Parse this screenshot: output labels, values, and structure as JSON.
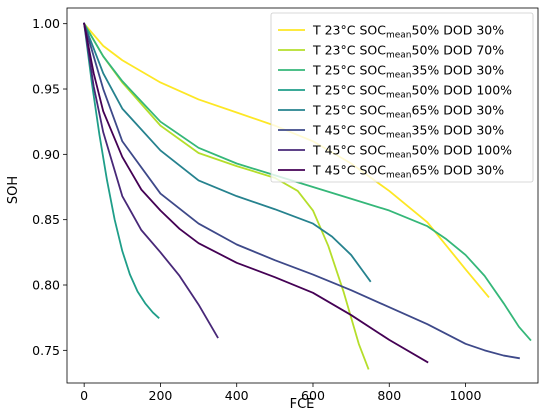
{
  "chart_data": {
    "type": "line",
    "xlabel": "FCE",
    "ylabel": "SOH",
    "xlim": [
      -45,
      1190
    ],
    "ylim": [
      0.725,
      1.012
    ],
    "x_ticks": [
      0,
      200,
      400,
      600,
      800,
      1000
    ],
    "y_ticks": [
      0.75,
      0.8,
      0.85,
      0.9,
      0.95,
      1.0
    ],
    "y_tick_labels": [
      "0.75",
      "0.80",
      "0.85",
      "0.90",
      "0.95",
      "1.00"
    ],
    "grid": false,
    "legend_position": "top-right",
    "series": [
      {
        "name_parts": [
          "T 23°C SOC",
          "mean",
          "50% DOD 30%"
        ],
        "color": "#fde725",
        "x": [
          0,
          50,
          100,
          200,
          300,
          400,
          500,
          600,
          700,
          800,
          900,
          1000,
          1060
        ],
        "y": [
          1.0,
          0.983,
          0.972,
          0.955,
          0.942,
          0.932,
          0.922,
          0.91,
          0.893,
          0.872,
          0.848,
          0.812,
          0.791
        ]
      },
      {
        "name_parts": [
          "T 23°C SOC",
          "mean",
          "50% DOD 70%"
        ],
        "color": "#b5de2b",
        "x": [
          0,
          50,
          100,
          200,
          300,
          400,
          500,
          560,
          600,
          640,
          680,
          720,
          745
        ],
        "y": [
          1.0,
          0.975,
          0.955,
          0.922,
          0.901,
          0.891,
          0.882,
          0.872,
          0.857,
          0.83,
          0.795,
          0.755,
          0.736
        ]
      },
      {
        "name_parts": [
          "T 25°C SOC",
          "mean",
          "35% DOD 30%"
        ],
        "color": "#35b779",
        "x": [
          0,
          50,
          100,
          200,
          300,
          400,
          500,
          600,
          700,
          800,
          900,
          950,
          1000,
          1050,
          1100,
          1140,
          1170
        ],
        "y": [
          1.0,
          0.975,
          0.956,
          0.925,
          0.905,
          0.893,
          0.884,
          0.875,
          0.866,
          0.857,
          0.845,
          0.835,
          0.823,
          0.807,
          0.786,
          0.768,
          0.758
        ]
      },
      {
        "name_parts": [
          "T 25°C SOC",
          "mean",
          "50% DOD 100%"
        ],
        "color": "#1f9e89",
        "x": [
          0,
          20,
          40,
          60,
          80,
          100,
          120,
          140,
          160,
          180,
          195
        ],
        "y": [
          1.0,
          0.955,
          0.915,
          0.88,
          0.85,
          0.826,
          0.808,
          0.795,
          0.786,
          0.779,
          0.775
        ]
      },
      {
        "name_parts": [
          "T 25°C SOC",
          "mean",
          "65% DOD 30%"
        ],
        "color": "#26828e",
        "x": [
          0,
          50,
          100,
          200,
          300,
          400,
          500,
          600,
          650,
          700,
          730,
          750
        ],
        "y": [
          1.0,
          0.962,
          0.935,
          0.903,
          0.88,
          0.868,
          0.858,
          0.847,
          0.837,
          0.823,
          0.811,
          0.803
        ]
      },
      {
        "name_parts": [
          "T 45°C SOC",
          "mean",
          "35% DOD 30%"
        ],
        "color": "#3e4989",
        "x": [
          0,
          50,
          100,
          200,
          300,
          400,
          500,
          600,
          700,
          800,
          900,
          1000,
          1050,
          1100,
          1140
        ],
        "y": [
          1.0,
          0.95,
          0.91,
          0.87,
          0.847,
          0.831,
          0.819,
          0.808,
          0.796,
          0.783,
          0.77,
          0.755,
          0.75,
          0.746,
          0.744
        ]
      },
      {
        "name_parts": [
          "T 45°C SOC",
          "mean",
          "50% DOD 100%"
        ],
        "color": "#482878",
        "x": [
          0,
          25,
          50,
          100,
          150,
          200,
          250,
          300,
          350
        ],
        "y": [
          1.0,
          0.952,
          0.917,
          0.868,
          0.842,
          0.825,
          0.807,
          0.785,
          0.76
        ]
      },
      {
        "name_parts": [
          "T 45°C SOC",
          "mean",
          "65% DOD 30%"
        ],
        "color": "#440154",
        "x": [
          0,
          25,
          50,
          100,
          150,
          200,
          250,
          300,
          400,
          500,
          600,
          700,
          800,
          900
        ],
        "y": [
          1.0,
          0.962,
          0.933,
          0.898,
          0.873,
          0.857,
          0.843,
          0.832,
          0.817,
          0.806,
          0.794,
          0.777,
          0.758,
          0.741
        ]
      }
    ]
  }
}
